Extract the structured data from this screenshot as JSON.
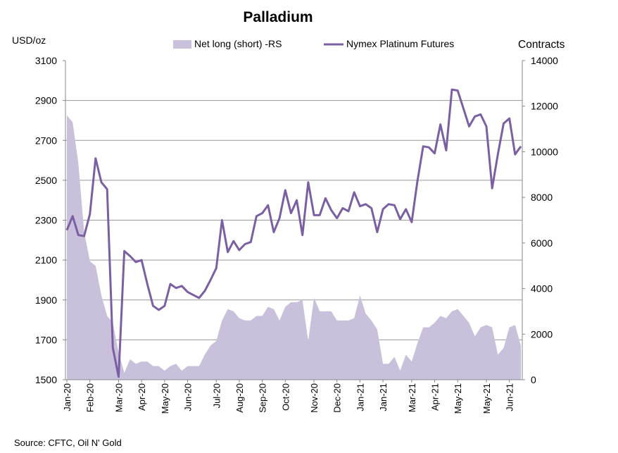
{
  "chart_data": {
    "type": "area",
    "title": "Palladium",
    "y_left_label": "USD/oz",
    "y_right_label": "Contracts",
    "source": "Source: CFTC, Oil N' Gold",
    "colors": {
      "area": "#c9c0dc",
      "line": "#7b5fa3",
      "grid": "#999999"
    },
    "ylim_left": [
      1500,
      3100
    ],
    "ylim_right": [
      0,
      14000
    ],
    "y_left_ticks": [
      "1500",
      "1700",
      "1900",
      "2100",
      "2300",
      "2500",
      "2700",
      "2900",
      "3100"
    ],
    "y_right_ticks": [
      "0",
      "2000",
      "4000",
      "6000",
      "8000",
      "10000",
      "12000",
      "14000"
    ],
    "x_tick_labels": [
      "Jan-20",
      "Feb-20",
      "Mar-20",
      "Apr-20",
      "May-20",
      "Jun-20",
      "Jul-20",
      "Aug-20",
      "Sep-20",
      "Oct-20",
      "Nov-20",
      "Dec-20",
      "Jan-21",
      "Jan-21",
      "Mar-21",
      "Apr-21",
      "May-21",
      "May-21",
      "Jun-21"
    ],
    "x_tick_week_index": [
      0,
      4,
      9,
      13,
      17,
      21,
      26,
      30,
      34,
      38,
      43,
      47,
      51,
      55,
      60,
      64,
      68,
      73,
      77
    ],
    "legend": {
      "placement": "top"
    },
    "series": [
      {
        "name": "Net long (short) -RS",
        "type": "area",
        "axis": "right",
        "values": [
          11600,
          11300,
          9500,
          6500,
          5200,
          5000,
          3700,
          2800,
          2500,
          1200,
          300,
          900,
          700,
          800,
          800,
          600,
          600,
          400,
          600,
          700,
          400,
          600,
          600,
          600,
          1100,
          1500,
          1700,
          2600,
          3100,
          3000,
          2700,
          2600,
          2600,
          2800,
          2800,
          3200,
          3100,
          2600,
          3200,
          3400,
          3400,
          3500,
          1700,
          3600,
          3000,
          3000,
          3000,
          2600,
          2600,
          2600,
          2700,
          3700,
          2900,
          2600,
          2200,
          700,
          700,
          1000,
          400,
          1100,
          800,
          1600,
          2300,
          2300,
          2500,
          2800,
          2700,
          3000,
          3100,
          2800,
          2500,
          1900,
          2300,
          2400,
          2300,
          1100,
          1400,
          2300,
          2400,
          1500
        ]
      },
      {
        "name": "Nymex Platinum Futures",
        "type": "line",
        "axis": "left",
        "values": [
          2250,
          2320,
          2225,
          2220,
          2330,
          2610,
          2490,
          2455,
          1660,
          1515,
          2145,
          2120,
          2090,
          2100,
          1980,
          1870,
          1850,
          1870,
          1980,
          1960,
          1970,
          1940,
          1925,
          1910,
          1945,
          2000,
          2060,
          2300,
          2140,
          2195,
          2150,
          2180,
          2190,
          2320,
          2335,
          2375,
          2240,
          2310,
          2450,
          2335,
          2400,
          2225,
          2490,
          2325,
          2325,
          2410,
          2350,
          2310,
          2360,
          2345,
          2440,
          2370,
          2380,
          2360,
          2240,
          2355,
          2380,
          2375,
          2305,
          2355,
          2290,
          2495,
          2670,
          2665,
          2635,
          2780,
          2650,
          2955,
          2950,
          2860,
          2770,
          2820,
          2830,
          2770,
          2460,
          2630,
          2785,
          2810,
          2630,
          2670
        ]
      }
    ]
  }
}
